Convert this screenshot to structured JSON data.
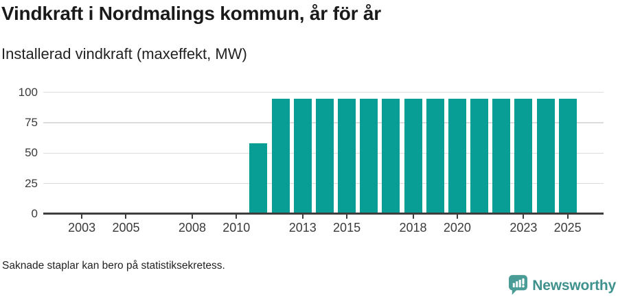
{
  "chart_data": {
    "type": "bar",
    "title": "Vindkraft i Nordmalings kommun, år för år",
    "subtitle": "Installerad vindkraft (maxeffekt, MW)",
    "unit": "MW",
    "x": [
      2002,
      2003,
      2004,
      2005,
      2006,
      2007,
      2008,
      2009,
      2010,
      2011,
      2012,
      2013,
      2014,
      2015,
      2016,
      2017,
      2018,
      2019,
      2020,
      2021,
      2022,
      2023,
      2024,
      2025
    ],
    "values": [
      null,
      null,
      null,
      null,
      null,
      null,
      null,
      null,
      null,
      58,
      95,
      95,
      95,
      95,
      95,
      95,
      95,
      95,
      95,
      95,
      95,
      95,
      95,
      95
    ],
    "ylim": [
      0,
      100
    ],
    "yticks": [
      0,
      25,
      50,
      75,
      100
    ],
    "xticks": [
      2003,
      2005,
      2008,
      2010,
      2013,
      2015,
      2018,
      2020,
      2023,
      2025
    ],
    "grid": true,
    "legend": false
  },
  "footer": {
    "note": "Saknade staplar kan bero på statistiksekretess.",
    "logo_label": "Newsworthy"
  },
  "colors": {
    "bar": "#089E96",
    "logo": "#4A9C96",
    "logo_text": "#3E918C",
    "axis": "#3D3D3D",
    "grid": "#DCDCDC",
    "text": "#1A1A1A",
    "tick_label": "#3A3A3A"
  }
}
